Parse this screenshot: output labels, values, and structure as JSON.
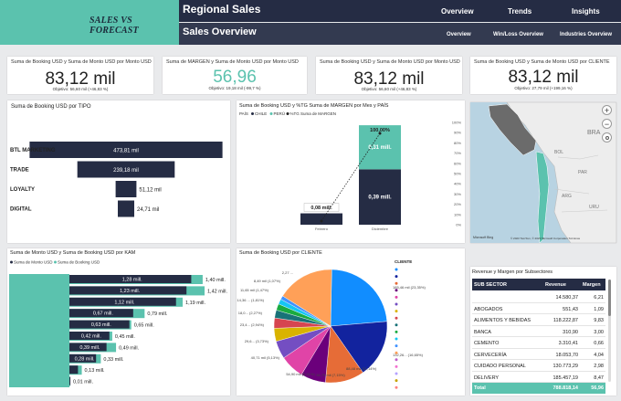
{
  "header": {
    "brand": "SALES VS FORECAST",
    "title": "Regional Sales",
    "subtitle": "Sales Overview",
    "nav_top": [
      "Overview",
      "Trends",
      "Insights"
    ],
    "nav_bottom": [
      "Overview",
      "Win/Loss Overview",
      "Industries Overview"
    ],
    "colors": {
      "teal": "#5bc2ae",
      "navy": "#252c44",
      "light_navy": "#333a50"
    }
  },
  "kpis": [
    {
      "title": "Suma de Booking USD y Suma de Monto USD por Monto USD",
      "value": "83,12 mil",
      "sub": "Objetivo: 56,60 mil (+46,83 %)",
      "color": "#222222"
    },
    {
      "title": "Suma de MARGEN y Suma de Monto USD por Monto USD",
      "value": "56,96",
      "sub": "Objetivo: 19,18 mil (-99,7 %)",
      "color": "#5bc2ae"
    },
    {
      "title": "Suma de Booking USD y Suma de Monto USD por Monto USD",
      "value": "83,12 mil",
      "sub": "Objetivo: 56,60 mil (+46,83 %)",
      "color": "#222222"
    },
    {
      "title": "Suma de Booking USD y Suma de Monto USD por CLIENTE",
      "value": "83,12 mil",
      "sub": "Objetivo: 27,79 mil (+199,16 %)",
      "color": "#222222"
    }
  ],
  "funnel": {
    "title": "Suma de Booking USD por TIPO",
    "rows": [
      {
        "label": "BTL MARKETING",
        "value": "473,81 mil",
        "num": 473.81
      },
      {
        "label": "TRADE",
        "value": "239,18 mil",
        "num": 239.18
      },
      {
        "label": "LOYALTY",
        "value": "51,12 mil",
        "num": 51.12
      },
      {
        "label": "DIGITAL",
        "value": "24,71 mil",
        "num": 24.71
      }
    ]
  },
  "stacked": {
    "title": "Suma de Booking USD y %TG Suma de MARGEN por Mes y PAÍS",
    "legend_label": "PAÍS",
    "legend": [
      {
        "name": "CHILE",
        "color": "#252c44"
      },
      {
        "name": "PERÚ",
        "color": "#5bc2ae"
      },
      {
        "name": "%TG Suma de MARGEN",
        "color": "#222222"
      }
    ],
    "y_ticks": [
      "100%",
      "90%",
      "80%",
      "70%",
      "60%",
      "50%",
      "40%",
      "30%",
      "20%",
      "10%",
      "0%"
    ],
    "bars": [
      {
        "label": "Febrero",
        "chile": "0,08 mill.",
        "chile_num": 0.08,
        "peru_num": 0
      },
      {
        "label": "Diciembre",
        "chile": "0,39 mill.",
        "peru": "0,31 mill.",
        "chile_num": 0.39,
        "peru_num": 0.31
      }
    ],
    "line_value": "100,00%",
    "line_pct": [
      0,
      100
    ]
  },
  "map": {
    "labels": [
      "BRA",
      "BOL",
      "PAR",
      "ARG",
      "URU"
    ],
    "attribution": "© 2023 TomTom, © 2023 Microsoft Corporation  Términos",
    "logo": "Microsoft Bing",
    "zoom_in": "+",
    "zoom_out": "−"
  },
  "kam": {
    "title": "Suma de Monto USD y Suma de Booking USD por KAM",
    "legend": [
      {
        "name": "Suma de Monto USD",
        "color": "#252c44"
      },
      {
        "name": "Suma de Booking USD",
        "color": "#5bc2ae"
      }
    ],
    "rows": [
      {
        "monto": "1,28 mill.",
        "booking": "1,40 mill.",
        "m": 1.28,
        "b": 1.4
      },
      {
        "monto": "1,23 mill.",
        "booking": "1,42 mill.",
        "m": 1.23,
        "b": 1.42
      },
      {
        "monto": "1,12 mill.",
        "booking": "1,19 mill.",
        "m": 1.12,
        "b": 1.19
      },
      {
        "monto": "0,67 mill.",
        "booking": "0,79 mill.",
        "m": 0.67,
        "b": 0.79
      },
      {
        "monto": "0,63 mill.",
        "booking": "0,65 mill.",
        "m": 0.63,
        "b": 0.65
      },
      {
        "monto": "0,42 mill.",
        "booking": "0,45 mill.",
        "m": 0.42,
        "b": 0.45
      },
      {
        "monto": "0,39 mill.",
        "booking": "0,49 mill.",
        "m": 0.39,
        "b": 0.49
      },
      {
        "monto": "0,28 mill.",
        "booking": "0,33 mill.",
        "m": 0.28,
        "b": 0.33
      },
      {
        "monto": "",
        "booking": "0,13 mill.",
        "m": 0.09,
        "b": 0.13
      },
      {
        "monto": "",
        "booking": "0,01 mill.",
        "m": 0.01,
        "b": 0.01
      }
    ]
  },
  "pie": {
    "title": "Suma de Booking USD por CLIENTE",
    "legend_title": "CLIENTE",
    "labels": [
      {
        "text": "185,46 mil (23,35%)",
        "side": "right"
      },
      {
        "text": "132,26... (16,65%)",
        "side": "right"
      },
      {
        "text": "88,48 mil (11,14%)",
        "side": "right"
      },
      {
        "text": "56,79 mil (7,15%)",
        "side": "bottom"
      },
      {
        "text": "54,90 mil (6,91%)",
        "side": "bottom"
      },
      {
        "text": "40,71 mil (5,13%)",
        "side": "left"
      },
      {
        "text": "29,6... (3,73%)",
        "side": "left"
      },
      {
        "text": "23,4... (2,94%)",
        "side": "left"
      },
      {
        "text": "18,0... (2,27%)",
        "side": "left"
      },
      {
        "text": "14,36 ... (1,81%)",
        "side": "left"
      },
      {
        "text": "11,65 mil (1,47%)",
        "side": "left"
      },
      {
        "text": "8,49 mil (1,07%)",
        "side": "top"
      },
      {
        "text": "2,27 ...",
        "side": "top"
      }
    ],
    "slices": [
      {
        "value": 23.35,
        "color": "#118dff"
      },
      {
        "value": 16.65,
        "color": "#12239e"
      },
      {
        "value": 11.14,
        "color": "#e66c37"
      },
      {
        "value": 7.15,
        "color": "#6b007b"
      },
      {
        "value": 6.91,
        "color": "#e044a7"
      },
      {
        "value": 5.13,
        "color": "#744ec2"
      },
      {
        "value": 3.73,
        "color": "#d9b300"
      },
      {
        "value": 2.94,
        "color": "#d64550"
      },
      {
        "value": 2.27,
        "color": "#197278"
      },
      {
        "value": 1.81,
        "color": "#1aab40"
      },
      {
        "value": 1.47,
        "color": "#15c6f4"
      },
      {
        "value": 1.07,
        "color": "#4092ff"
      },
      {
        "value": 16.38,
        "color": "#ffa058"
      }
    ],
    "legend_colors": [
      "#118dff",
      "#12239e",
      "#e66c37",
      "#6b007b",
      "#e044a7",
      "#744ec2",
      "#d9b300",
      "#d64550",
      "#197278",
      "#1aab40",
      "#15c6f4",
      "#4092ff",
      "#ffa058",
      "#be5dc9",
      "#f472d0",
      "#b5a1ff",
      "#c4a200",
      "#ff8080"
    ]
  },
  "table": {
    "title": "Revenue y Margen por Subsectores",
    "headers": [
      "SUB SECTOR",
      "Revenue",
      "Margen"
    ],
    "rows": [
      [
        "",
        "14.580,37",
        "6,21"
      ],
      [
        "ABOGADOS",
        "551,43",
        "1,09"
      ],
      [
        "ALIMENTOS Y BEBIDAS",
        "118.222,87",
        "9,83"
      ],
      [
        "BANCA",
        "310,90",
        "3,00"
      ],
      [
        "CEMENTO",
        "3.310,41",
        "0,66"
      ],
      [
        "CERVECERÍA",
        "18.053,70",
        "4,04"
      ],
      [
        "CUIDADO PERSONAL",
        "130.773,29",
        "2,98"
      ],
      [
        "DELIVERY",
        "185.457,19",
        "8,47"
      ]
    ],
    "total": [
      "Total",
      "788.818,14",
      "56,96"
    ]
  }
}
